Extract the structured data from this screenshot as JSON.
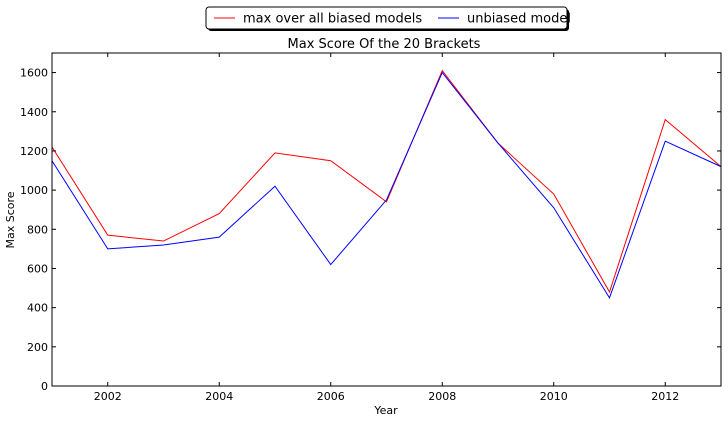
{
  "chart_data": {
    "type": "line",
    "title": "Max Score Of the 20 Brackets",
    "xlabel": "Year",
    "ylabel": "Max Score",
    "xlim": [
      2001,
      2013
    ],
    "ylim": [
      0,
      1700
    ],
    "xticks": [
      2002,
      2004,
      2006,
      2008,
      2010,
      2012
    ],
    "yticks": [
      0,
      200,
      400,
      600,
      800,
      1000,
      1200,
      1400,
      1600
    ],
    "x": [
      2001,
      2002,
      2003,
      2004,
      2005,
      2006,
      2007,
      2008,
      2009,
      2010,
      2011,
      2012,
      2013
    ],
    "series": [
      {
        "name": "max over all biased models",
        "color": "#ff0000",
        "values": [
          1220,
          770,
          740,
          880,
          1190,
          1150,
          940,
          1610,
          1240,
          980,
          480,
          1360,
          1120
        ]
      },
      {
        "name": "unbiased model",
        "color": "#0000ff",
        "values": [
          1150,
          700,
          720,
          760,
          1020,
          620,
          950,
          1600,
          1240,
          910,
          450,
          1250,
          1120
        ]
      }
    ],
    "legend_position": "top-center",
    "grid": false
  }
}
